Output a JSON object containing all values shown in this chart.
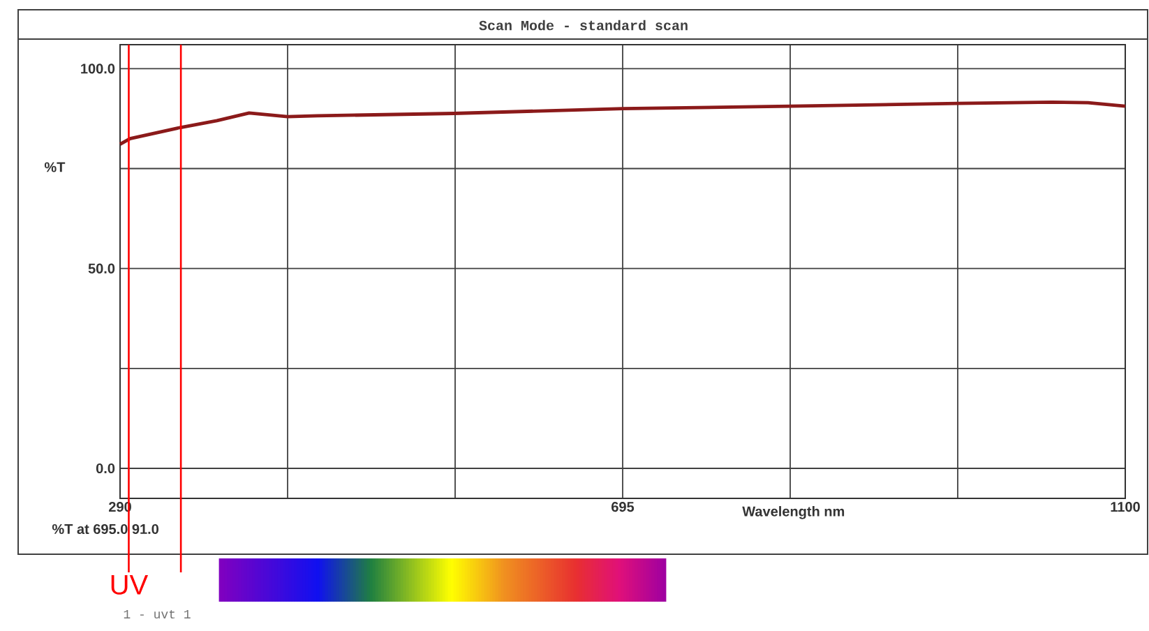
{
  "chart_data": {
    "type": "line",
    "title": "Scan Mode - standard scan",
    "xlabel": "Wavelength  nm",
    "ylabel": "%T",
    "x": [
      290,
      298,
      339,
      368,
      394,
      425,
      449,
      559,
      695,
      830,
      965,
      1041,
      1070,
      1100
    ],
    "series": [
      {
        "color": "#8b1a1a",
        "values": [
          81.1,
          82.5,
          85.3,
          87.0,
          88.9,
          88.0,
          88.2,
          88.8,
          90.0,
          90.6,
          91.3,
          91.6,
          91.5,
          90.6
        ]
      }
    ],
    "xlim": [
      290,
      1100
    ],
    "ylim": [
      -7.5,
      106
    ],
    "xticks": [
      290,
      {
        "value": 425,
        "label": null
      },
      {
        "value": 560,
        "label": null
      },
      695,
      {
        "value": 830,
        "label": null
      },
      {
        "value": 965,
        "label": null
      },
      1100
    ],
    "yticks": [
      {
        "value": 0,
        "label": "0.0"
      },
      {
        "value": 25,
        "label": null
      },
      {
        "value": 50,
        "label": "50.0"
      },
      {
        "value": 75,
        "label": null
      },
      {
        "value": 100,
        "label": "100.0"
      }
    ],
    "grid": true,
    "ref_lines": [
      {
        "axis": "x",
        "value": 297,
        "label": "UV",
        "color": "#ff0000"
      },
      {
        "axis": "x",
        "value": 339,
        "color": "#ff0000"
      }
    ],
    "annotations": [
      "%T  at 695.0   91.0",
      "1 - uvt 1"
    ]
  }
}
